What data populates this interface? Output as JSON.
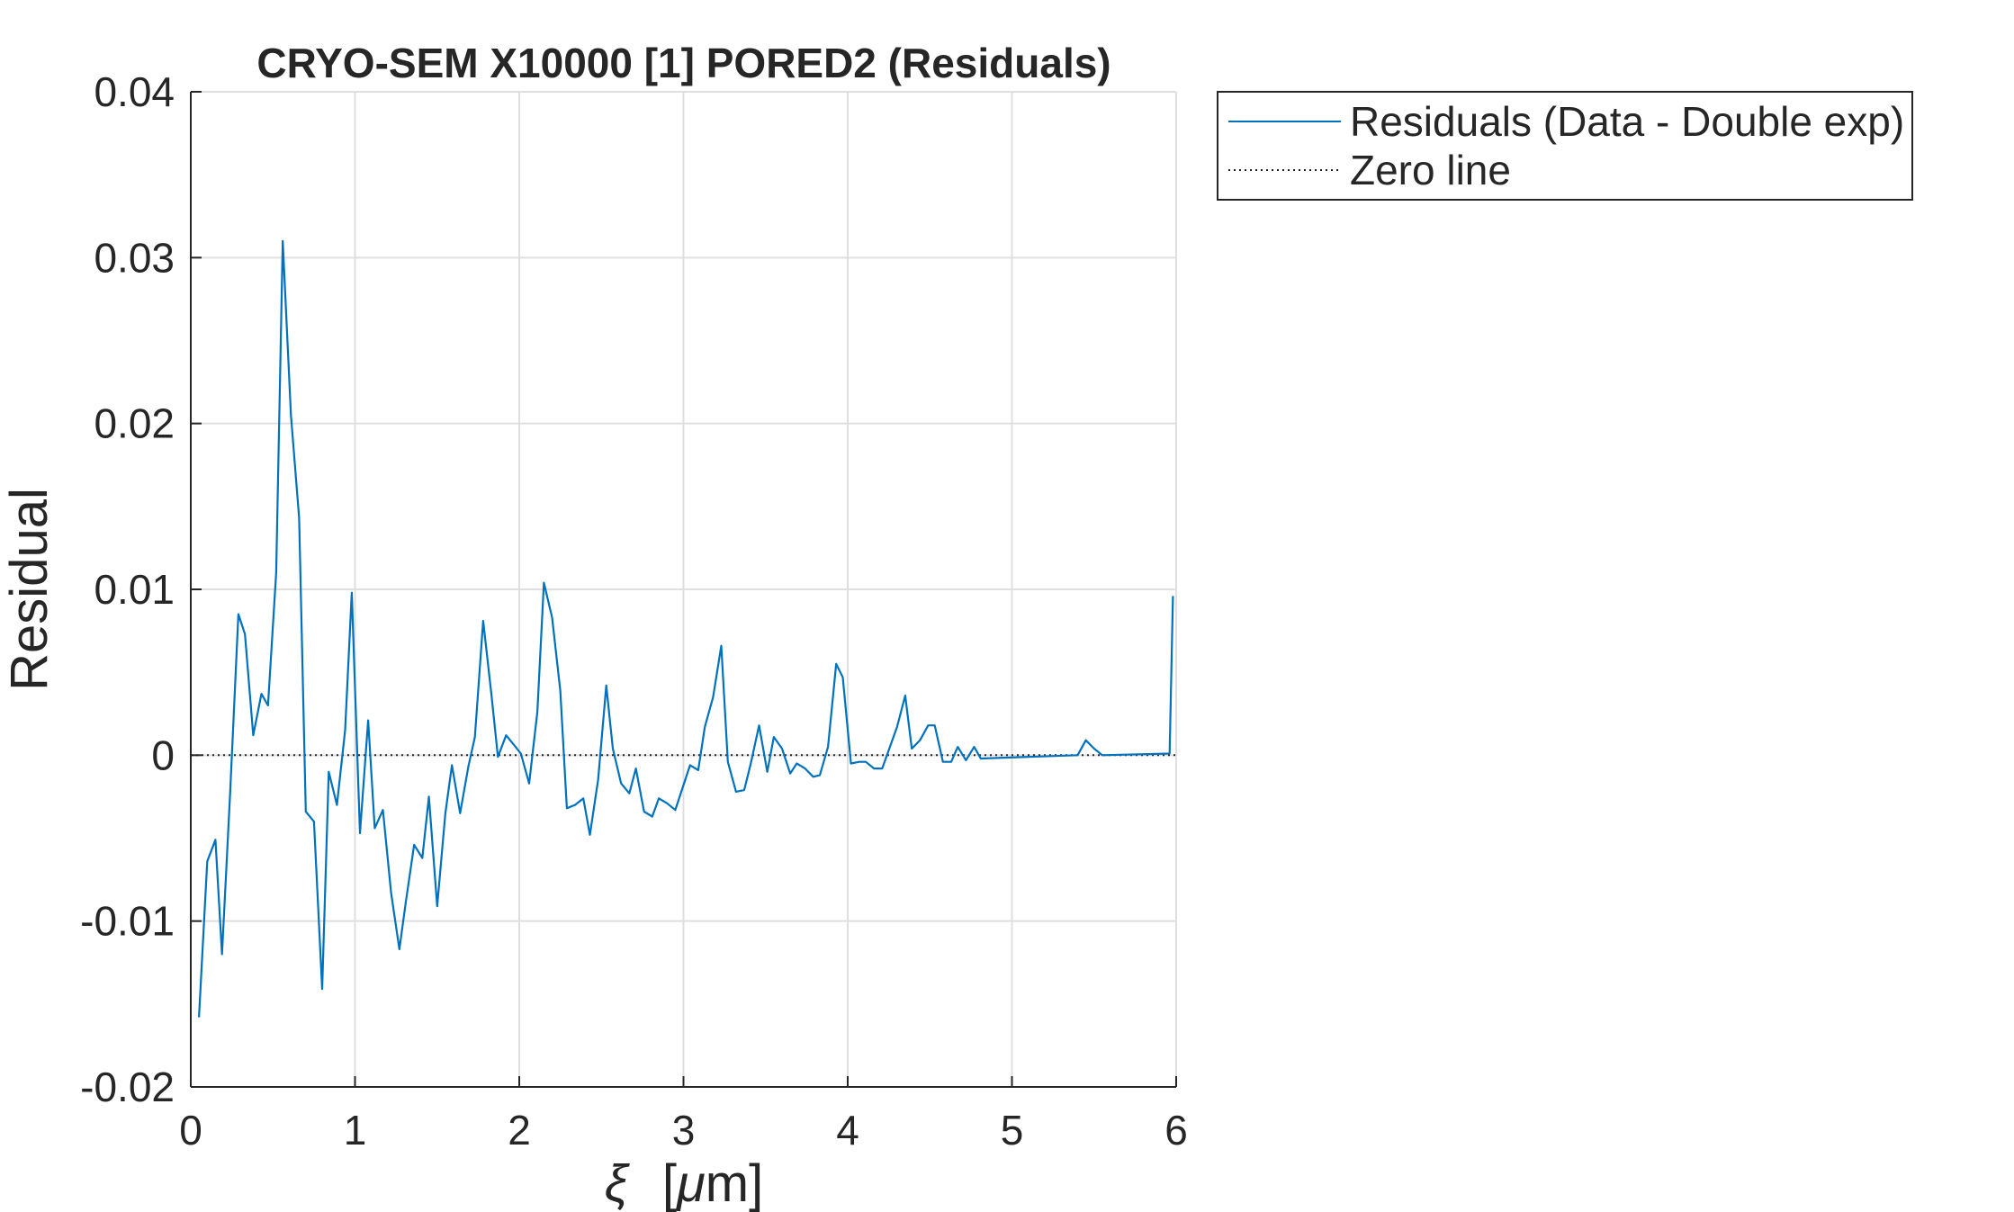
{
  "chart_data": {
    "type": "line",
    "title": "CRYO-SEM X10000 [1] PORED2 (Residuals)",
    "xlabel_symbol": "ξ",
    "xlabel_unit_open": "[",
    "xlabel_unit_mu": "μ",
    "xlabel_unit_rest": "m]",
    "ylabel": "Residual",
    "xlim": [
      0,
      6
    ],
    "ylim": [
      -0.02,
      0.04
    ],
    "xticks": [
      0,
      1,
      2,
      3,
      4,
      5,
      6
    ],
    "xtick_labels": [
      "0",
      "1",
      "2",
      "3",
      "4",
      "5",
      "6"
    ],
    "yticks": [
      -0.02,
      -0.01,
      0,
      0.01,
      0.02,
      0.03,
      0.04
    ],
    "ytick_labels": [
      "-0.02",
      "-0.01",
      "0",
      "0.01",
      "0.02",
      "0.03",
      "0.04"
    ],
    "grid": true,
    "legend_position": "outside-top-right",
    "series": [
      {
        "name": "Residuals (Data - Double exp)",
        "color": "#0072BD",
        "style": "solid",
        "x": [
          0.05,
          0.1,
          0.15,
          0.19,
          0.24,
          0.29,
          0.33,
          0.38,
          0.43,
          0.47,
          0.52,
          0.56,
          0.61,
          0.66,
          0.7,
          0.75,
          0.8,
          0.84,
          0.89,
          0.94,
          0.98,
          1.03,
          1.08,
          1.12,
          1.17,
          1.22,
          1.27,
          1.31,
          1.36,
          1.41,
          1.45,
          1.5,
          1.55,
          1.59,
          1.64,
          1.69,
          1.73,
          1.78,
          1.83,
          1.87,
          1.92,
          1.97,
          2.01,
          2.06,
          2.11,
          2.15,
          2.2,
          2.25,
          2.29,
          2.34,
          2.39,
          2.43,
          2.48,
          2.53,
          2.57,
          2.62,
          2.67,
          2.71,
          2.76,
          2.81,
          2.85,
          2.9,
          2.95,
          2.99,
          3.04,
          3.09,
          3.13,
          3.18,
          3.23,
          3.27,
          3.32,
          3.37,
          3.41,
          3.46,
          3.51,
          3.55,
          3.6,
          3.65,
          3.69,
          3.74,
          3.79,
          3.83,
          3.88,
          3.93,
          3.97,
          4.02,
          4.07,
          4.11,
          4.16,
          4.21,
          4.25,
          4.3,
          4.35,
          4.39,
          4.44,
          4.49,
          4.53,
          4.58,
          4.63,
          4.67,
          4.72,
          4.77,
          4.81,
          5.4,
          5.45,
          5.5,
          5.55,
          5.96,
          5.98
        ],
        "y": [
          -0.0158,
          -0.0064,
          -0.0051,
          -0.012,
          -0.0022,
          0.0085,
          0.0073,
          0.0012,
          0.0037,
          0.003,
          0.011,
          0.031,
          0.0205,
          0.0143,
          -0.0034,
          -0.004,
          -0.0141,
          -0.001,
          -0.003,
          0.0015,
          0.0098,
          -0.0047,
          0.0021,
          -0.0044,
          -0.0033,
          -0.0083,
          -0.0117,
          -0.0088,
          -0.0054,
          -0.0062,
          -0.0025,
          -0.0091,
          -0.0035,
          -0.0006,
          -0.0035,
          -0.0007,
          0.0011,
          0.0081,
          0.0037,
          -0.0001,
          0.0012,
          0.0006,
          0.0001,
          -0.0017,
          0.0026,
          0.0104,
          0.0083,
          0.0039,
          -0.0032,
          -0.003,
          -0.0026,
          -0.0048,
          -0.0015,
          0.0042,
          0.0004,
          -0.0017,
          -0.0023,
          -0.0008,
          -0.0034,
          -0.0037,
          -0.0026,
          -0.0029,
          -0.0033,
          -0.0021,
          -0.0006,
          -0.0009,
          0.0017,
          0.0035,
          0.0066,
          -0.0004,
          -0.0022,
          -0.0021,
          -0.0005,
          0.0018,
          -0.001,
          0.0011,
          0.0004,
          -0.0011,
          -0.0005,
          -0.0008,
          -0.0013,
          -0.0012,
          0.0005,
          0.0055,
          0.0047,
          -0.0005,
          -0.0004,
          -0.0004,
          -0.0008,
          -0.0008,
          0.0003,
          0.0017,
          0.0036,
          0.0004,
          0.0009,
          0.0018,
          0.0018,
          -0.0004,
          -0.0004,
          0.0005,
          -0.0003,
          0.0005,
          -0.0002,
          0.0,
          0.0009,
          0.0004,
          0.0,
          0.0001,
          0.0096
        ]
      },
      {
        "name": "Zero line",
        "color": "#262626",
        "style": "dotted",
        "x": [
          0,
          6
        ],
        "y": [
          0,
          0
        ]
      }
    ]
  }
}
